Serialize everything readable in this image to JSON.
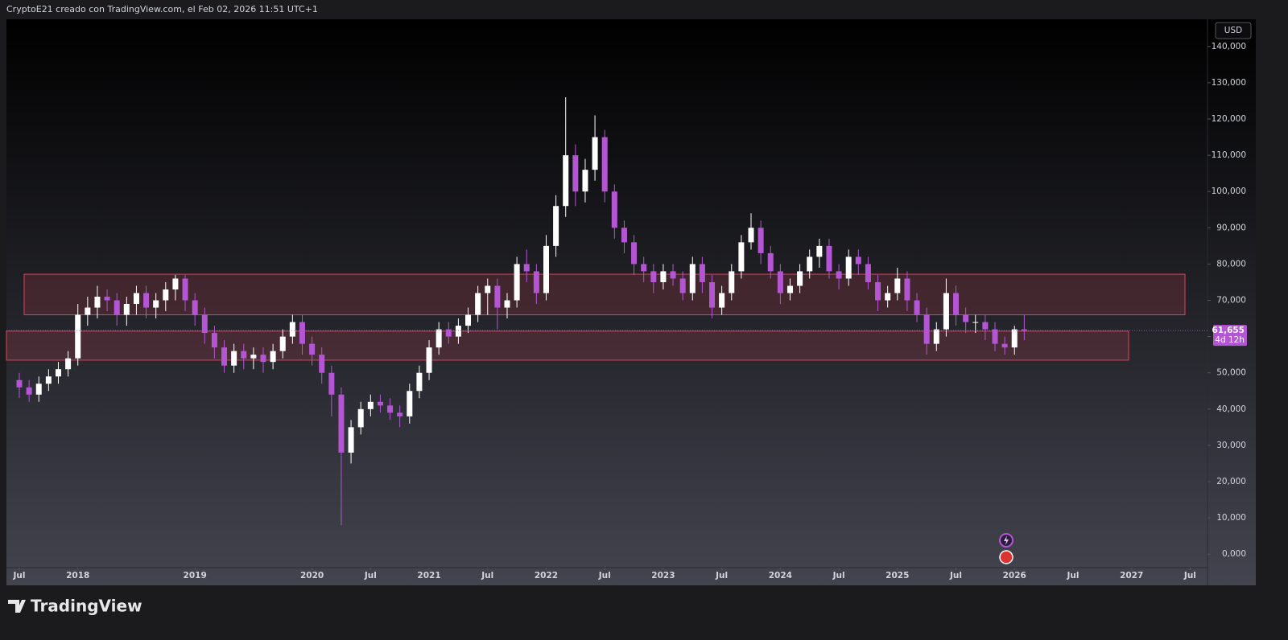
{
  "header": {
    "title": "CryptoE21 creado con TradingView.com, el Feb 02, 2026 11:51 UTC+1"
  },
  "footer": {
    "brand": "TradingView"
  },
  "chart_data": {
    "type": "candlestick",
    "currency": "USD",
    "up_color": "#ffffff",
    "down_color": "#b455d4",
    "zone_color": "#e0415a",
    "x": [
      "2017-07",
      "2017-08",
      "2017-09",
      "2017-10",
      "2017-11",
      "2017-12",
      "2018-01",
      "2018-02",
      "2018-03",
      "2018-04",
      "2018-05",
      "2018-06",
      "2018-07",
      "2018-08",
      "2018-09",
      "2018-10",
      "2018-11",
      "2018-12",
      "2019-01",
      "2019-02",
      "2019-03",
      "2019-04",
      "2019-05",
      "2019-06",
      "2019-07",
      "2019-08",
      "2019-09",
      "2019-10",
      "2019-11",
      "2019-12",
      "2020-01",
      "2020-02",
      "2020-03",
      "2020-04",
      "2020-05",
      "2020-06",
      "2020-07",
      "2020-08",
      "2020-09",
      "2020-10",
      "2020-11",
      "2020-12",
      "2021-01",
      "2021-02",
      "2021-03",
      "2021-04",
      "2021-05",
      "2021-06",
      "2021-07",
      "2021-08",
      "2021-09",
      "2021-10",
      "2021-11",
      "2021-12",
      "2022-01",
      "2022-02",
      "2022-03",
      "2022-04",
      "2022-05",
      "2022-06",
      "2022-07",
      "2022-08",
      "2022-09",
      "2022-10",
      "2022-11",
      "2022-12",
      "2023-01",
      "2023-02",
      "2023-03",
      "2023-04",
      "2023-05",
      "2023-06",
      "2023-07",
      "2023-08",
      "2023-09",
      "2023-10",
      "2023-11",
      "2023-12",
      "2024-01",
      "2024-02",
      "2024-03",
      "2024-04",
      "2024-05",
      "2024-06",
      "2024-07",
      "2024-08",
      "2024-09",
      "2024-10",
      "2024-11",
      "2024-12",
      "2025-01",
      "2025-02",
      "2025-03",
      "2025-04",
      "2025-05",
      "2025-06",
      "2025-07",
      "2025-08",
      "2025-09",
      "2025-10",
      "2025-11",
      "2025-12",
      "2026-01",
      "2026-02"
    ],
    "open": [
      48000,
      46000,
      44000,
      47000,
      49000,
      51000,
      54000,
      66000,
      68000,
      71000,
      70000,
      66000,
      69000,
      72000,
      68000,
      70000,
      73000,
      76000,
      70000,
      66000,
      61000,
      57000,
      52000,
      56000,
      54000,
      55000,
      53000,
      56000,
      60000,
      64000,
      58000,
      55000,
      50000,
      44000,
      28000,
      35000,
      40000,
      42000,
      41000,
      39000,
      38000,
      45000,
      50000,
      57000,
      62000,
      60000,
      63000,
      66000,
      72000,
      74000,
      68000,
      70000,
      80000,
      78000,
      72000,
      85000,
      96000,
      110000,
      100000,
      106000,
      115000,
      100000,
      90000,
      86000,
      80000,
      78000,
      75000,
      78000,
      76000,
      72000,
      80000,
      75000,
      68000,
      72000,
      78000,
      86000,
      90000,
      83000,
      78000,
      72000,
      74000,
      78000,
      82000,
      85000,
      78000,
      76000,
      82000,
      80000,
      75000,
      70000,
      72000,
      76000,
      70000,
      66000,
      58000,
      62000,
      72000,
      66000,
      64000,
      64000,
      62000,
      58000,
      57000,
      62000
    ],
    "high": [
      50000,
      48000,
      49000,
      51000,
      53000,
      56000,
      69000,
      71000,
      74000,
      73000,
      72000,
      71000,
      74000,
      74000,
      72000,
      75000,
      77000,
      77000,
      72000,
      68000,
      63000,
      59000,
      58000,
      58000,
      57000,
      57000,
      58000,
      62000,
      66000,
      66000,
      60000,
      57000,
      52000,
      46000,
      37000,
      42000,
      44000,
      44000,
      43000,
      41000,
      47000,
      52000,
      59000,
      64000,
      64000,
      65000,
      68000,
      74000,
      76000,
      76000,
      72000,
      82000,
      84000,
      80000,
      88000,
      99000,
      126000,
      113000,
      109000,
      121000,
      117000,
      102000,
      92000,
      88000,
      82000,
      80000,
      80000,
      80000,
      78000,
      82000,
      82000,
      77000,
      74000,
      80000,
      88000,
      94000,
      92000,
      85000,
      80000,
      76000,
      80000,
      84000,
      87000,
      87000,
      80000,
      84000,
      84000,
      82000,
      77000,
      74000,
      79000,
      78000,
      72000,
      68000,
      64000,
      76000,
      74000,
      68000,
      66000,
      66000,
      64000,
      60000,
      63000,
      66000
    ],
    "low": [
      43000,
      42000,
      42000,
      45000,
      47000,
      49000,
      52000,
      63000,
      65000,
      67000,
      63000,
      63000,
      66000,
      65000,
      65000,
      67000,
      70000,
      67000,
      63000,
      58000,
      54000,
      50000,
      50000,
      51000,
      51000,
      50000,
      51000,
      54000,
      58000,
      55000,
      52000,
      47000,
      38000,
      8000,
      25000,
      33000,
      38000,
      39000,
      37000,
      35000,
      36000,
      43000,
      48000,
      55000,
      58000,
      58000,
      61000,
      64000,
      66000,
      62000,
      65000,
      68000,
      75000,
      69000,
      70000,
      82000,
      93000,
      96000,
      97000,
      103000,
      97000,
      87000,
      83000,
      77000,
      75000,
      72000,
      73000,
      74000,
      70000,
      70000,
      72000,
      65000,
      66000,
      70000,
      76000,
      84000,
      80000,
      76000,
      69000,
      70000,
      72000,
      76000,
      79000,
      76000,
      73000,
      74000,
      77000,
      73000,
      67000,
      68000,
      70000,
      67000,
      64000,
      55000,
      56000,
      60000,
      63000,
      61000,
      61000,
      59000,
      56000,
      55000,
      55000,
      59000
    ],
    "close": [
      46000,
      44000,
      47000,
      49000,
      51000,
      54000,
      66000,
      68000,
      71000,
      70000,
      66000,
      69000,
      72000,
      68000,
      70000,
      73000,
      76000,
      70000,
      66000,
      61000,
      57000,
      52000,
      56000,
      54000,
      55000,
      53000,
      56000,
      60000,
      64000,
      58000,
      55000,
      50000,
      44000,
      28000,
      35000,
      40000,
      42000,
      41000,
      39000,
      38000,
      45000,
      50000,
      57000,
      62000,
      60000,
      63000,
      66000,
      72000,
      74000,
      68000,
      70000,
      80000,
      78000,
      72000,
      85000,
      96000,
      110000,
      100000,
      106000,
      115000,
      100000,
      90000,
      86000,
      80000,
      78000,
      75000,
      78000,
      76000,
      72000,
      80000,
      75000,
      68000,
      72000,
      78000,
      86000,
      90000,
      83000,
      78000,
      72000,
      74000,
      78000,
      82000,
      85000,
      78000,
      76000,
      82000,
      80000,
      75000,
      70000,
      72000,
      76000,
      70000,
      66000,
      58000,
      62000,
      72000,
      66000,
      64000,
      64000,
      62000,
      58000,
      57000,
      62000,
      61655
    ],
    "last_label": "61,655",
    "countdown": "4d 12h",
    "zones": [
      {
        "high": 77200,
        "low": 66000
      },
      {
        "high": 61500,
        "low": 53500
      }
    ],
    "ylim": [
      -8600,
      147500
    ],
    "yticks": [
      {
        "value": 0,
        "label": "0,000"
      },
      {
        "value": 10000,
        "label": "10,000"
      },
      {
        "value": 20000,
        "label": "20,000"
      },
      {
        "value": 30000,
        "label": "30,000"
      },
      {
        "value": 40000,
        "label": "40,000"
      },
      {
        "value": 50000,
        "label": "50,000"
      },
      {
        "value": 60000,
        "label": "60,000"
      },
      {
        "value": 70000,
        "label": "70,000"
      },
      {
        "value": 80000,
        "label": "80,000"
      },
      {
        "value": 90000,
        "label": "90,000"
      },
      {
        "value": 100000,
        "label": "100,000"
      },
      {
        "value": 110000,
        "label": "110,000"
      },
      {
        "value": 120000,
        "label": "120,000"
      },
      {
        "value": 130000,
        "label": "130,000"
      },
      {
        "value": 140000,
        "label": "140,000"
      }
    ],
    "xticks": [
      {
        "value": "2017-07",
        "label": "Jul"
      },
      {
        "value": "2018-01",
        "label": "2018"
      },
      {
        "value": "2019-01",
        "label": "2019"
      },
      {
        "value": "2020-01",
        "label": "2020"
      },
      {
        "value": "2020-07",
        "label": "Jul"
      },
      {
        "value": "2021-01",
        "label": "2021"
      },
      {
        "value": "2021-07",
        "label": "Jul"
      },
      {
        "value": "2022-01",
        "label": "2022"
      },
      {
        "value": "2022-07",
        "label": "Jul"
      },
      {
        "value": "2023-01",
        "label": "2023"
      },
      {
        "value": "2023-07",
        "label": "Jul"
      },
      {
        "value": "2024-01",
        "label": "2024"
      },
      {
        "value": "2024-07",
        "label": "Jul"
      },
      {
        "value": "2025-01",
        "label": "2025"
      },
      {
        "value": "2025-07",
        "label": "Jul"
      },
      {
        "value": "2026-01",
        "label": "2026"
      },
      {
        "value": "2026-07",
        "label": "Jul"
      },
      {
        "value": "2027-01",
        "label": "2027"
      },
      {
        "value": "2027-07",
        "label": "Jul"
      }
    ]
  }
}
